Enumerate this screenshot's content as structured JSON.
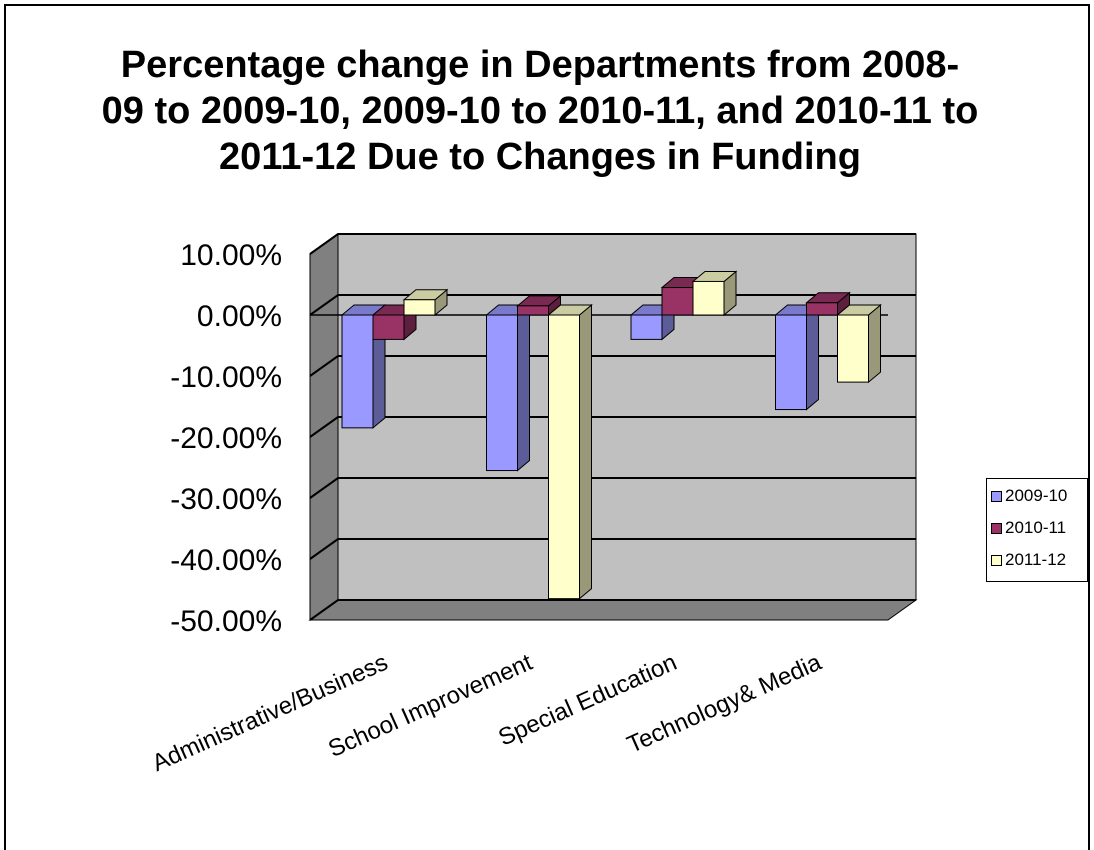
{
  "chart_data": {
    "type": "bar",
    "title": "Percentage change in Departments from 2008-09 to 2009-10, 2009-10 to 2010-11, and 2010-11 to 2011-12 Due to Changes in Funding",
    "categories": [
      "Administrative/Business",
      "School Improvement",
      "Special Education",
      "Technology& Media"
    ],
    "series": [
      {
        "name": "2009-10",
        "values": [
          -18.5,
          -25.5,
          -4.0,
          -15.5
        ],
        "color": "#9999ff"
      },
      {
        "name": "2010-11",
        "values": [
          -4.0,
          1.5,
          4.5,
          2.0
        ],
        "color": "#993366"
      },
      {
        "name": "2011-12",
        "values": [
          2.5,
          -46.5,
          5.5,
          -11.0
        ],
        "color": "#ffffcc"
      }
    ],
    "ylim": [
      -50,
      10
    ],
    "yticks": [
      "10.00%",
      "0.00%",
      "-10.00%",
      "-20.00%",
      "-30.00%",
      "-40.00%",
      "-50.00%"
    ],
    "ytick_values": [
      10,
      0,
      -10,
      -20,
      -30,
      -40,
      -50
    ],
    "xlabel": "",
    "ylabel": "",
    "grid": true,
    "legend": "right",
    "colors": {
      "wall": "#c0c0c0",
      "floor": "#808080",
      "gridline": "#000000"
    }
  }
}
